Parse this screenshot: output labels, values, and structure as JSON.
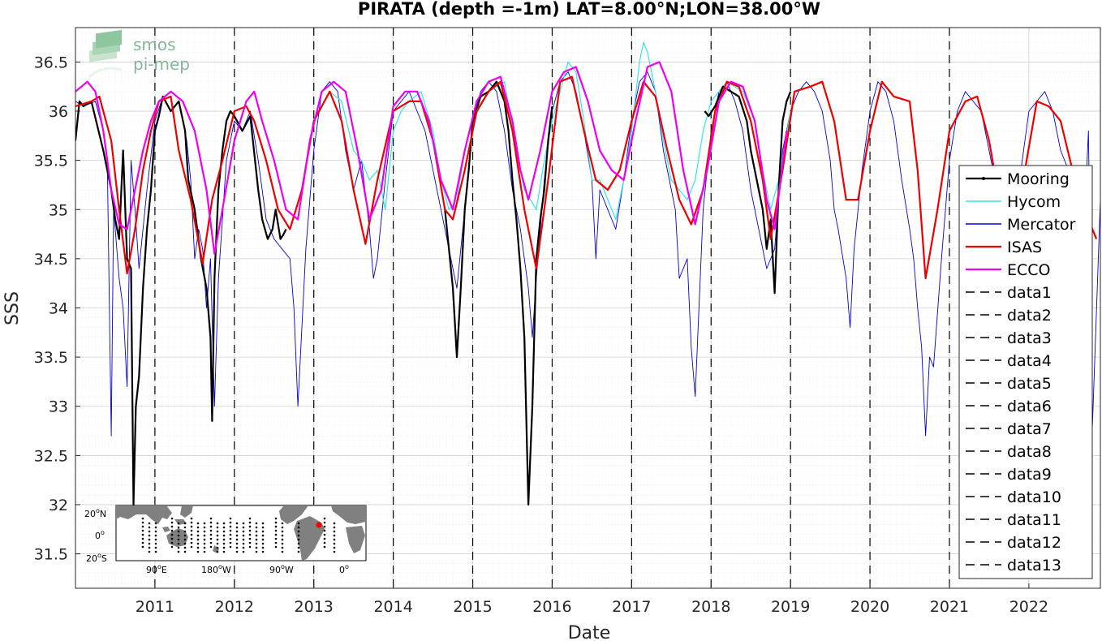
{
  "chart_data": {
    "type": "line",
    "title": "PIRATA (depth =-1m) LAT=8.00°N;LON=38.00°W",
    "xlabel": "Date",
    "ylabel": "SSS",
    "xlim": [
      2010.0,
      2022.9
    ],
    "ylim": [
      31.15,
      36.85
    ],
    "grid": true,
    "legend_position": "right",
    "x_ticks": [
      2011,
      2012,
      2013,
      2014,
      2015,
      2016,
      2017,
      2018,
      2019,
      2020,
      2021,
      2022
    ],
    "x_tick_labels": [
      "2011",
      "2012",
      "2013",
      "2014",
      "2015",
      "2016",
      "2017",
      "2018",
      "2019",
      "2020",
      "2021",
      "2022"
    ],
    "y_ticks": [
      31.5,
      32,
      32.5,
      33,
      33.5,
      34,
      34.5,
      35,
      35.5,
      36,
      36.5
    ],
    "y_tick_labels": [
      "31.5",
      "32",
      "32.5",
      "33",
      "33.5",
      "34",
      "34.5",
      "35",
      "35.5",
      "36",
      "36.5"
    ],
    "series": [
      {
        "name": "Mooring",
        "color": "#000000",
        "width": 2.2,
        "x": [
          2010.0,
          2010.05,
          2010.1,
          2010.2,
          2010.35,
          2010.45,
          2010.5,
          2010.55,
          2010.6,
          2010.65,
          2010.7,
          2010.73,
          2010.76,
          2010.8,
          2010.85,
          2010.9,
          2010.95,
          2011.0,
          2011.05,
          2011.1,
          2011.2,
          2011.3,
          2011.38,
          2011.42,
          2011.5,
          2011.58,
          2011.65,
          2011.7,
          2011.72,
          2011.75,
          2011.8,
          2011.85,
          2011.9,
          2011.95,
          2012.0,
          2012.1,
          2012.2,
          2012.3,
          2012.35,
          2012.42,
          2012.48,
          2012.52,
          2012.58,
          2012.62,
          2012.65,
          null,
          2014.65,
          2014.7,
          2014.75,
          2014.8,
          2014.85,
          2014.9,
          2014.95,
          2015.0,
          2015.1,
          2015.2,
          2015.3,
          2015.4,
          2015.45,
          2015.5,
          2015.55,
          2015.6,
          2015.65,
          2015.7,
          2015.75,
          2015.8,
          2015.85,
          2015.9,
          2015.95,
          2016.0,
          null,
          2017.92,
          2017.97,
          2018.05,
          2018.15,
          2018.25,
          2018.35,
          2018.45,
          2018.5,
          2018.55,
          2018.6,
          2018.65,
          2018.7,
          2018.75,
          2018.8,
          2018.85,
          2018.9,
          2018.95,
          2019.0
        ],
        "y": [
          35.7,
          36.1,
          36.05,
          36.1,
          35.6,
          35.2,
          34.9,
          34.7,
          35.6,
          34.5,
          34.4,
          32.0,
          33.0,
          33.3,
          34.2,
          34.8,
          35.2,
          35.8,
          35.95,
          36.15,
          36.0,
          36.1,
          35.8,
          35.3,
          35.0,
          34.5,
          34.2,
          33.7,
          32.85,
          34.3,
          35.2,
          35.6,
          35.9,
          36.0,
          35.95,
          35.8,
          35.95,
          35.2,
          34.9,
          34.7,
          34.8,
          35.0,
          34.7,
          34.75,
          34.8,
          null,
          35.0,
          34.6,
          34.2,
          33.5,
          34.2,
          35.0,
          35.4,
          35.9,
          36.15,
          36.2,
          36.3,
          36.1,
          35.8,
          35.3,
          34.9,
          34.4,
          33.7,
          32.0,
          33.0,
          34.5,
          34.9,
          35.2,
          35.7,
          36.05,
          null,
          36.0,
          35.95,
          36.05,
          36.25,
          36.2,
          36.15,
          35.9,
          35.6,
          35.4,
          35.2,
          35.0,
          34.6,
          34.9,
          34.15,
          35.2,
          35.9,
          36.1,
          36.2
        ]
      },
      {
        "name": "Hycom",
        "color": "#33e6e6",
        "width": 1.2,
        "x": [
          2013.0,
          2013.2,
          2013.35,
          2013.5,
          2013.6,
          2013.7,
          2013.8,
          2013.9,
          2014.0,
          2014.1,
          2014.2,
          2014.35,
          2014.5,
          2014.6,
          2014.7,
          2014.8,
          2014.9,
          2015.0,
          2015.2,
          2015.4,
          2015.55,
          2015.65,
          2015.8,
          2015.9,
          2016.0,
          2016.1,
          2016.2,
          2016.3,
          2016.4,
          2016.45,
          2016.5,
          2016.6,
          2016.7,
          2016.8,
          2016.9,
          2017.0,
          2017.1,
          2017.15,
          2017.2,
          2017.3,
          2017.4,
          2017.5,
          2017.6,
          2017.7,
          2017.8,
          2017.9,
          2018.0,
          2018.2,
          2018.4,
          2018.55,
          2018.65,
          2018.75,
          2018.85,
          2019.0
        ],
        "y": [
          35.9,
          36.2,
          36.1,
          35.6,
          35.5,
          35.3,
          35.4,
          35.0,
          35.8,
          36.0,
          36.1,
          36.2,
          35.8,
          35.3,
          35.0,
          35.1,
          35.6,
          35.9,
          36.2,
          36.3,
          35.6,
          35.2,
          35.0,
          35.5,
          35.9,
          36.2,
          36.5,
          36.4,
          35.9,
          35.6,
          35.3,
          35.3,
          35.1,
          34.9,
          35.3,
          35.8,
          36.5,
          36.7,
          36.6,
          36.2,
          35.7,
          35.3,
          35.2,
          35.1,
          35.3,
          35.8,
          36.1,
          36.3,
          36.2,
          35.9,
          35.4,
          35.0,
          35.3,
          36.0
        ]
      },
      {
        "name": "Mercator",
        "color": "#0000dd",
        "width": 0.9,
        "x": [
          2010.0,
          2010.1,
          2010.25,
          2010.35,
          2010.4,
          2010.45,
          2010.48,
          2010.5,
          2010.55,
          2010.6,
          2010.65,
          2010.7,
          2010.75,
          2010.8,
          2010.9,
          2011.0,
          2011.1,
          2011.2,
          2011.3,
          2011.4,
          2011.45,
          2011.5,
          2011.55,
          2011.6,
          2011.65,
          2011.7,
          2011.75,
          2011.8,
          2011.9,
          2012.0,
          2012.1,
          2012.2,
          2012.3,
          2012.4,
          2012.5,
          2012.6,
          2012.7,
          2012.75,
          2012.8,
          2012.9,
          2013.0,
          2013.1,
          2013.2,
          2013.3,
          2013.4,
          2013.5,
          2013.6,
          2013.7,
          2013.75,
          2013.8,
          2013.9,
          2014.0,
          2014.1,
          2014.2,
          2014.3,
          2014.4,
          2014.5,
          2014.6,
          2014.7,
          2014.75,
          2014.8,
          2014.9,
          2015.0,
          2015.1,
          2015.2,
          2015.3,
          2015.4,
          2015.5,
          2015.6,
          2015.7,
          2015.75,
          2015.8,
          2015.9,
          2016.0,
          2016.1,
          2016.2,
          2016.3,
          2016.4,
          2016.5,
          2016.55,
          2016.6,
          2016.7,
          2016.8,
          2016.9,
          2017.0,
          2017.1,
          2017.2,
          2017.3,
          2017.4,
          2017.5,
          2017.55,
          2017.6,
          2017.7,
          2017.75,
          2017.8,
          2017.9,
          2018.0,
          2018.1,
          2018.2,
          2018.3,
          2018.4,
          2018.5,
          2018.6,
          2018.7,
          2018.8,
          2018.9,
          2019.0,
          2019.1,
          2019.2,
          2019.3,
          2019.4,
          2019.5,
          2019.55,
          2019.6,
          2019.7,
          2019.75,
          2019.8,
          2019.9,
          2020.0,
          2020.1,
          2020.2,
          2020.3,
          2020.4,
          2020.5,
          2020.55,
          2020.6,
          2020.65,
          2020.7,
          2020.75,
          2020.8,
          2020.9,
          2021.0,
          2021.1,
          2021.2,
          2021.3,
          2021.4,
          2021.5,
          2021.6,
          2021.7,
          2021.75,
          2021.8,
          2021.9,
          2022.0,
          2022.1,
          2022.2,
          2022.3,
          2022.4,
          2022.5,
          2022.6,
          2022.7,
          2022.75,
          2022.8,
          2022.9
        ],
        "y": [
          36.1,
          36.05,
          36.1,
          35.8,
          35.5,
          32.7,
          35.0,
          34.8,
          34.3,
          34.0,
          33.2,
          35.5,
          35.0,
          34.4,
          35.2,
          35.9,
          36.15,
          36.0,
          36.1,
          35.7,
          35.3,
          34.5,
          34.8,
          34.6,
          34.0,
          34.5,
          33.0,
          34.3,
          35.5,
          35.9,
          35.8,
          36.0,
          35.5,
          34.9,
          34.7,
          34.6,
          34.5,
          34.0,
          33.0,
          34.6,
          35.6,
          36.2,
          36.3,
          36.2,
          35.6,
          35.2,
          35.5,
          34.8,
          34.3,
          34.5,
          35.3,
          36.0,
          36.1,
          36.2,
          36.0,
          35.8,
          35.4,
          35.0,
          34.6,
          34.4,
          34.2,
          35.0,
          35.9,
          36.2,
          36.3,
          36.2,
          35.8,
          35.2,
          34.8,
          34.2,
          33.7,
          34.3,
          35.3,
          36.0,
          36.3,
          36.4,
          36.2,
          35.8,
          35.3,
          34.5,
          35.2,
          35.0,
          34.8,
          35.3,
          35.9,
          36.3,
          36.4,
          36.2,
          35.6,
          35.2,
          35.0,
          34.3,
          34.5,
          33.6,
          33.1,
          35.0,
          35.8,
          36.2,
          36.3,
          36.1,
          35.8,
          35.2,
          34.8,
          34.4,
          34.6,
          35.6,
          36.0,
          36.2,
          36.3,
          36.2,
          36.0,
          35.5,
          35.0,
          34.8,
          34.3,
          33.8,
          34.6,
          35.4,
          36.0,
          36.3,
          36.2,
          35.9,
          35.3,
          34.8,
          34.5,
          34.0,
          33.6,
          32.7,
          33.5,
          33.4,
          34.5,
          35.5,
          36.0,
          36.2,
          36.1,
          36.0,
          35.6,
          35.2,
          34.8,
          34.0,
          34.5,
          35.4,
          36.0,
          36.1,
          36.2,
          36.0,
          35.6,
          35.4,
          35.1,
          34.9,
          35.8,
          32.8,
          35.1
        ]
      },
      {
        "name": "ISAS",
        "color": "#ee0000",
        "width": 2.2,
        "x": [
          2010.0,
          2010.2,
          2010.3,
          2010.45,
          2010.55,
          2010.65,
          2010.75,
          2010.85,
          2010.95,
          2011.05,
          2011.2,
          2011.3,
          2011.45,
          2011.6,
          2011.72,
          2011.85,
          2012.0,
          2012.15,
          2012.25,
          2012.4,
          2012.55,
          2012.7,
          2012.85,
          2013.0,
          2013.2,
          2013.35,
          2013.5,
          2013.65,
          2013.8,
          2014.0,
          2014.2,
          2014.35,
          2014.5,
          2014.65,
          2014.75,
          2014.9,
          2015.05,
          2015.2,
          2015.35,
          2015.5,
          2015.65,
          2015.8,
          2015.95,
          2016.1,
          2016.25,
          2016.4,
          2016.55,
          2016.7,
          2016.85,
          2017.0,
          2017.15,
          2017.3,
          2017.45,
          2017.6,
          2017.75,
          2017.9,
          2018.05,
          2018.2,
          2018.35,
          2018.5,
          2018.65,
          2018.75,
          2018.9,
          2019.05,
          2019.25,
          2019.4,
          2019.55,
          2019.7,
          2019.85,
          2020.0,
          2020.15,
          2020.3,
          2020.5,
          2020.6,
          2020.7,
          2020.85,
          2021.0,
          2021.2,
          2021.35,
          2021.5,
          2021.65,
          2021.8,
          2021.95,
          2022.1,
          2022.25,
          2022.4,
          2022.55,
          2022.7,
          2022.85
        ],
        "y": [
          36.05,
          36.1,
          36.15,
          35.7,
          35.0,
          34.35,
          34.8,
          35.4,
          35.8,
          36.1,
          36.15,
          35.6,
          35.1,
          34.45,
          35.1,
          35.5,
          36.0,
          36.05,
          35.9,
          35.5,
          35.0,
          34.8,
          35.2,
          35.9,
          36.2,
          35.9,
          35.2,
          34.65,
          35.3,
          36.0,
          36.1,
          36.1,
          35.7,
          35.0,
          34.9,
          35.4,
          36.0,
          36.2,
          36.3,
          35.8,
          35.0,
          34.4,
          35.3,
          36.3,
          36.35,
          35.8,
          35.3,
          35.2,
          35.4,
          35.9,
          36.3,
          36.15,
          35.6,
          35.1,
          34.85,
          35.2,
          36.0,
          36.3,
          36.25,
          35.9,
          35.3,
          34.7,
          35.4,
          36.2,
          36.25,
          36.3,
          35.9,
          35.1,
          35.1,
          35.8,
          36.3,
          36.15,
          36.1,
          35.4,
          34.3,
          35.0,
          35.8,
          36.1,
          36.15,
          35.7,
          35.0,
          34.6,
          35.4,
          36.1,
          36.05,
          35.9,
          35.4,
          35.0,
          34.7
        ]
      },
      {
        "name": "ECCO",
        "color": "#ee00ee",
        "width": 2.2,
        "x": [
          2010.0,
          2010.15,
          2010.25,
          2010.35,
          2010.45,
          2010.55,
          2010.65,
          2010.75,
          2010.85,
          2010.95,
          2011.05,
          2011.2,
          2011.35,
          2011.5,
          2011.65,
          2011.75,
          2011.85,
          2012.0,
          2012.15,
          2012.25,
          2012.35,
          2012.5,
          2012.65,
          2012.8,
          2012.95,
          2013.1,
          2013.25,
          2013.4,
          2013.55,
          2013.7,
          2013.85,
          2014.0,
          2014.15,
          2014.3,
          2014.45,
          2014.6,
          2014.75,
          2014.9,
          2015.05,
          2015.2,
          2015.35,
          2015.5,
          2015.6,
          2015.7,
          2015.85,
          2016.0,
          2016.15,
          2016.3,
          2016.45,
          2016.6,
          2016.75,
          2016.9,
          2017.05,
          2017.2,
          2017.35,
          2017.5,
          2017.65,
          2017.8,
          2017.95,
          2018.1,
          2018.25,
          2018.4,
          2018.55,
          2018.7,
          2018.8,
          2018.95
        ],
        "y": [
          36.2,
          36.3,
          36.2,
          35.8,
          35.2,
          34.85,
          34.8,
          35.2,
          35.6,
          35.9,
          36.1,
          36.2,
          36.1,
          35.8,
          35.2,
          34.55,
          35.0,
          35.7,
          36.1,
          36.2,
          35.9,
          35.5,
          35.0,
          34.9,
          35.7,
          36.2,
          36.3,
          36.2,
          35.6,
          34.9,
          35.2,
          36.05,
          36.2,
          36.2,
          35.9,
          35.3,
          35.0,
          35.6,
          36.1,
          36.3,
          36.35,
          35.9,
          35.4,
          35.1,
          35.6,
          36.2,
          36.4,
          36.45,
          36.1,
          35.6,
          35.4,
          35.3,
          35.9,
          36.45,
          36.5,
          36.2,
          35.4,
          34.85,
          35.4,
          36.1,
          36.3,
          36.25,
          35.9,
          35.1,
          34.8,
          35.8
        ]
      }
    ],
    "legend_entries": [
      "Mooring",
      "Hycom",
      "Mercator",
      "ISAS",
      "ECCO",
      "data1",
      "data2",
      "data3",
      "data4",
      "data5",
      "data6",
      "data7",
      "data8",
      "data9",
      "data10",
      "data11",
      "data12",
      "data13"
    ],
    "vertical_markers_x": [
      2011,
      2012,
      2013,
      2014,
      2015,
      2016,
      2017,
      2018,
      2019,
      2020,
      2021
    ],
    "logo": {
      "line1": "smos",
      "line2": "pi-mep"
    },
    "inset_map": {
      "lat_labels": [
        "20",
        "0",
        "20"
      ],
      "lat_suffixes": [
        "N",
        "",
        "S"
      ],
      "lon_labels": [
        "90",
        "180",
        "90",
        "0"
      ],
      "lon_suffixes": [
        "E",
        "W",
        "W",
        ""
      ],
      "marker_color": "#ee0000"
    }
  }
}
